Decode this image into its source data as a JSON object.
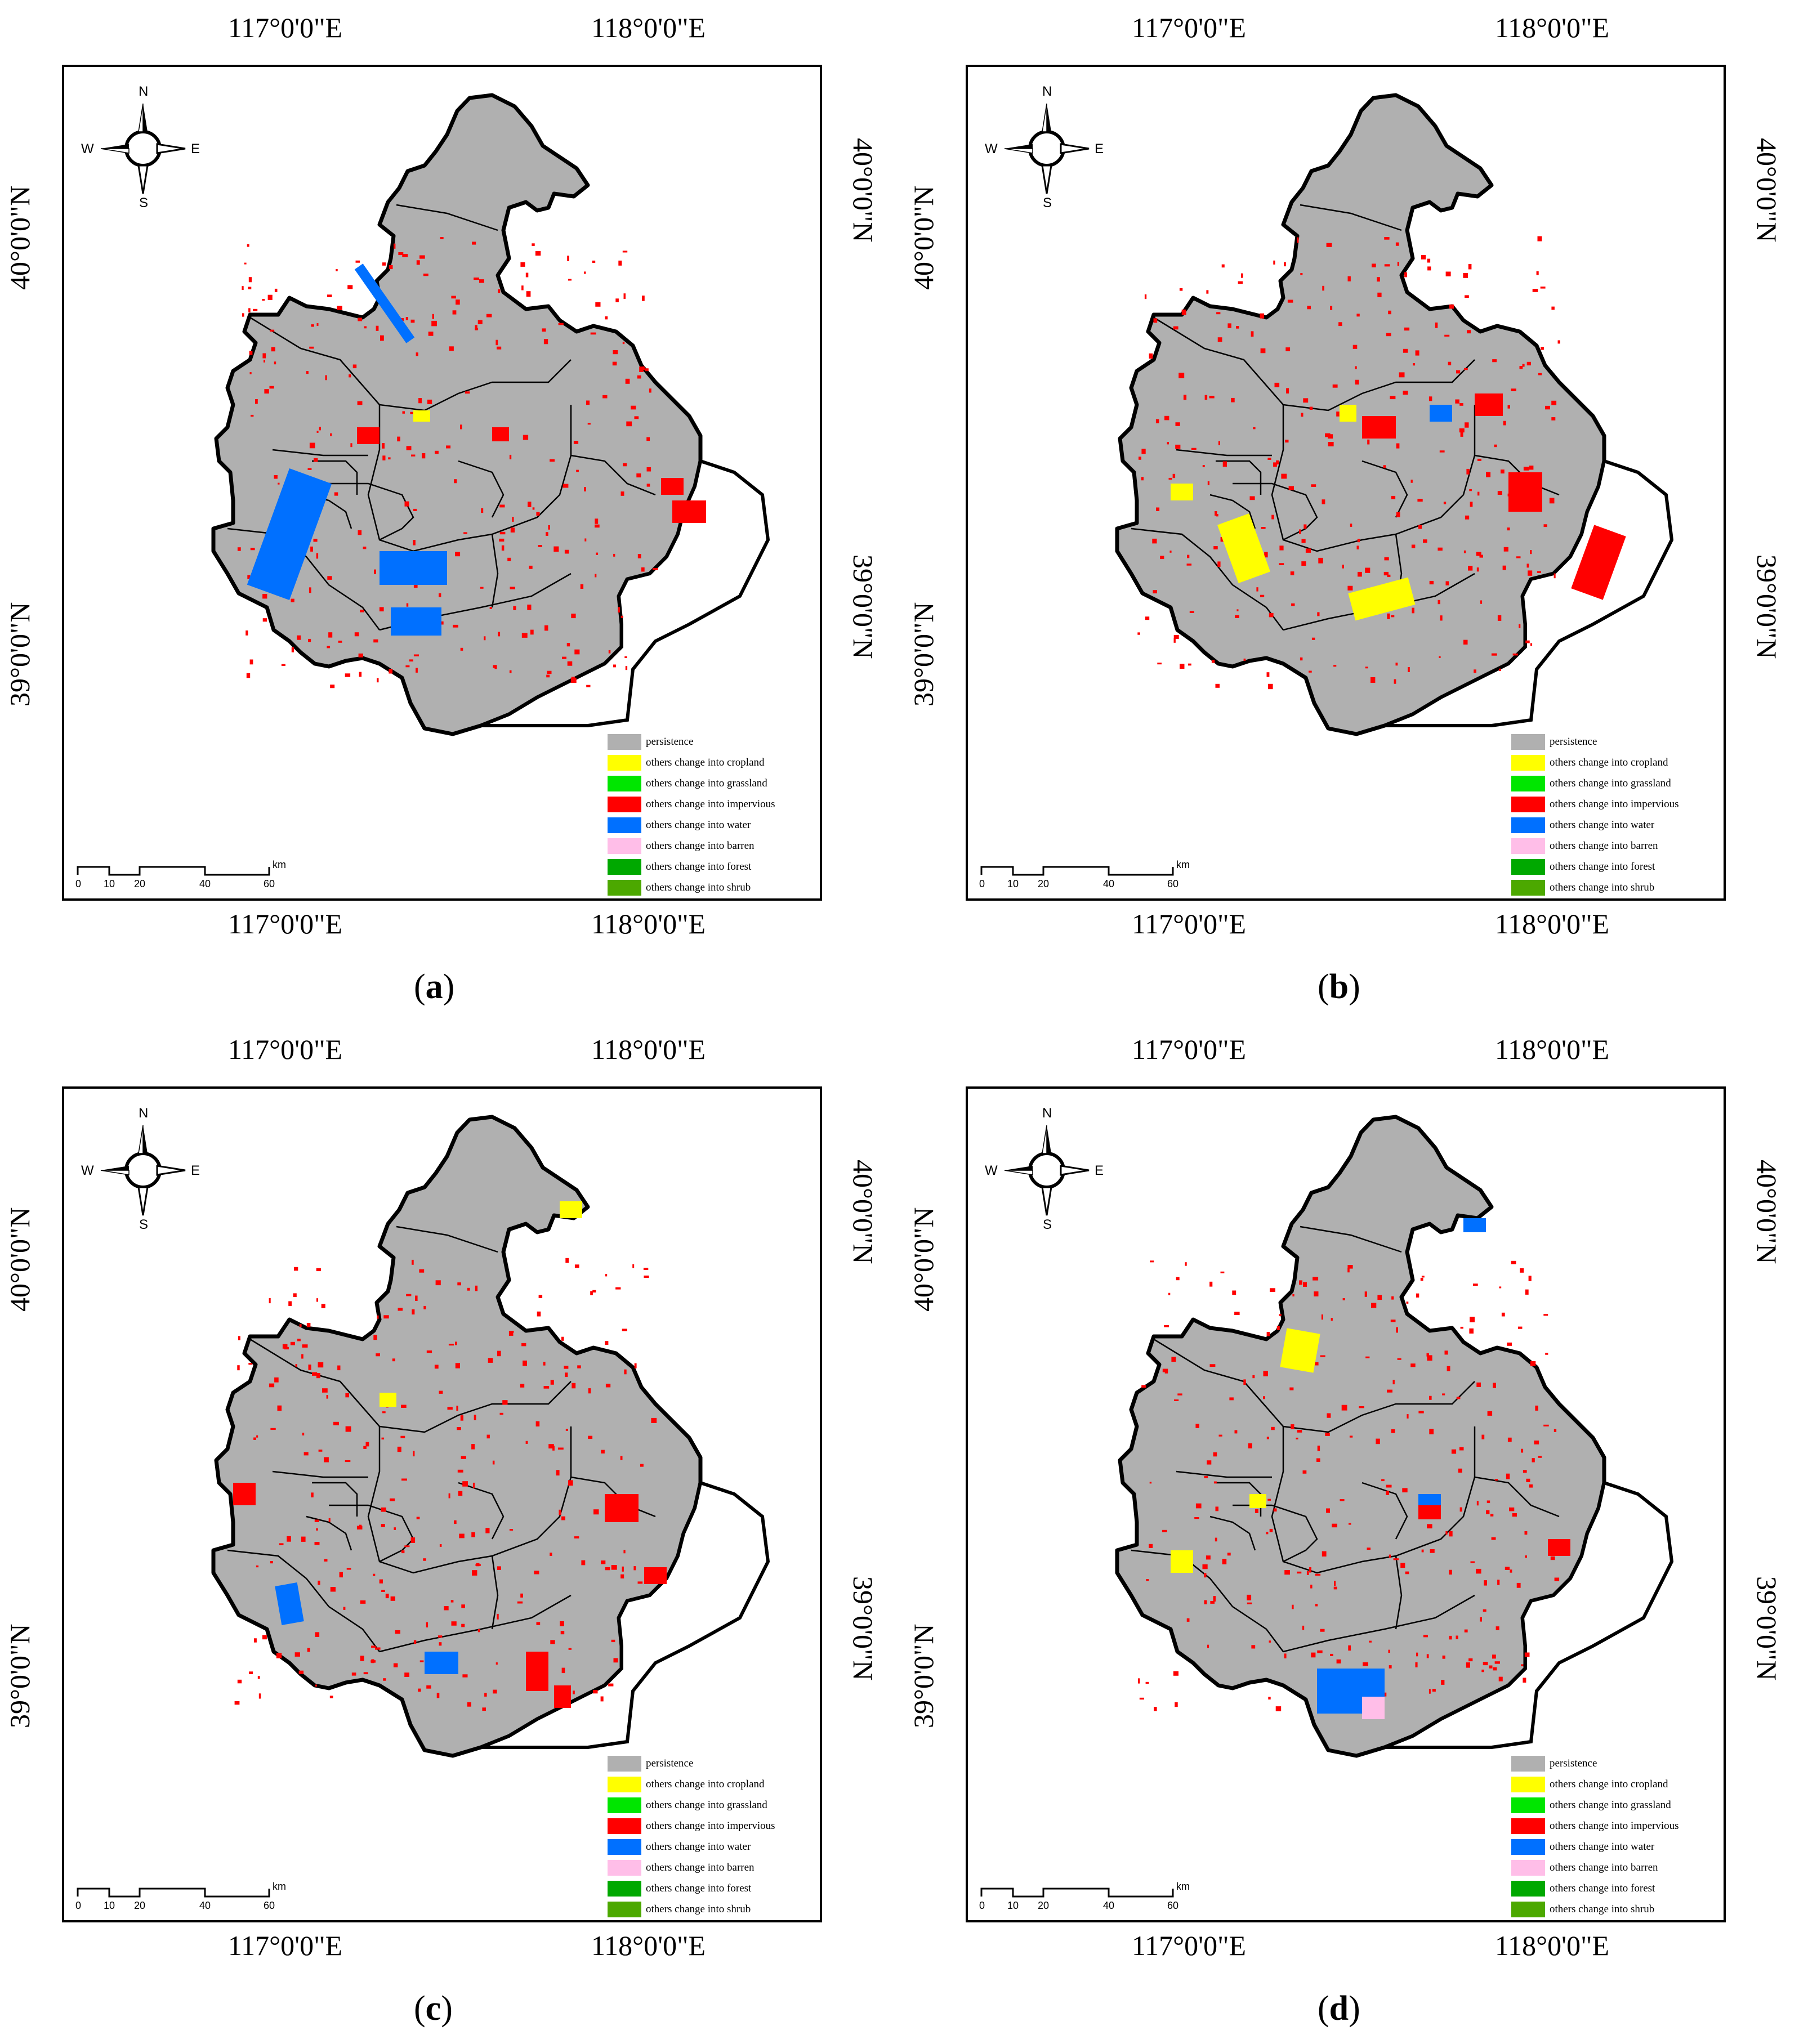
{
  "axis_labels": {
    "lon_left": "117°0'0\"E",
    "lon_right": "118°0'0\"E",
    "lat_upper": "40°0'0\"N",
    "lat_lower": "39°0'0\"N"
  },
  "compass": {
    "north": "N",
    "south": "S",
    "east": "E",
    "west": "W"
  },
  "scale": {
    "ticks": [
      "0",
      "10",
      "20",
      "40",
      "60"
    ],
    "unit": "km"
  },
  "legend": {
    "items": [
      {
        "label": "persistence",
        "color": "#b0b0b0"
      },
      {
        "label": "others change into cropland",
        "color": "#ffff00"
      },
      {
        "label": "others change into grassland",
        "color": "#00e600"
      },
      {
        "label": "others change into impervious",
        "color": "#ff0000"
      },
      {
        "label": "others change into water",
        "color": "#0070ff"
      },
      {
        "label": "others change into barren",
        "color": "#ffbee8"
      },
      {
        "label": "others change into forest",
        "color": "#00a800"
      },
      {
        "label": "others change into shrub",
        "color": "#4ca800"
      }
    ]
  },
  "panels": [
    {
      "letter": "a",
      "label_open": "(",
      "label_close": ")"
    },
    {
      "letter": "b",
      "label_open": "(",
      "label_close": ")"
    },
    {
      "letter": "c",
      "label_open": "(",
      "label_close": ")"
    },
    {
      "letter": "d",
      "label_open": "(",
      "label_close": ")"
    }
  ]
}
